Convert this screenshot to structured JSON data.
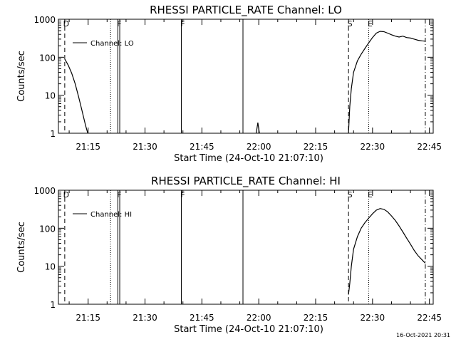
{
  "footer_timestamp": "16-Oct-2021 20:31",
  "chart_data": [
    {
      "type": "line",
      "title": "RHESSI PARTICLE_RATE Channel: LO",
      "xlabel": "Start Time (24-Oct-10 21:07:10)",
      "ylabel": "Counts/sec",
      "y_scale": "log",
      "xlim": [
        "21:07:10",
        "22:46:00"
      ],
      "ylim": [
        1,
        1000
      ],
      "x_tick_labels": [
        "21:15",
        "21:30",
        "21:45",
        "22:00",
        "22:15",
        "22:30",
        "22:45"
      ],
      "y_tick_labels": [
        "1",
        "10",
        "100",
        "1000"
      ],
      "grid": false,
      "legend_position": "top-left",
      "series": [
        {
          "name": "Channel: LO",
          "color": "#000000",
          "segments": [
            [
              [
                "21:08:50",
                90
              ],
              [
                "21:09:45",
                62
              ],
              [
                "21:10:40",
                38
              ],
              [
                "21:11:35",
                20
              ],
              [
                "21:12:30",
                9
              ],
              [
                "21:13:25",
                3.8
              ],
              [
                "21:14:20",
                1.6
              ],
              [
                "21:14:55",
                1
              ]
            ],
            [
              [
                "21:59:20",
                1
              ],
              [
                "21:59:45",
                1.9
              ],
              [
                "22:00:10",
                1
              ]
            ],
            [
              [
                "22:23:40",
                1
              ],
              [
                "22:24:00",
                5
              ],
              [
                "22:24:25",
                15
              ],
              [
                "22:25:00",
                40
              ],
              [
                "22:26:00",
                80
              ],
              [
                "22:27:00",
                120
              ],
              [
                "22:28:00",
                170
              ],
              [
                "22:29:00",
                240
              ],
              [
                "22:30:00",
                330
              ],
              [
                "22:31:00",
                430
              ],
              [
                "22:32:00",
                480
              ],
              [
                "22:33:00",
                470
              ],
              [
                "22:34:00",
                430
              ],
              [
                "22:35:00",
                390
              ],
              [
                "22:36:00",
                360
              ],
              [
                "22:37:00",
                340
              ],
              [
                "22:38:00",
                360
              ],
              [
                "22:39:00",
                330
              ],
              [
                "22:40:00",
                320
              ],
              [
                "22:41:00",
                300
              ],
              [
                "22:42:00",
                280
              ],
              [
                "22:43:00",
                270
              ],
              [
                "22:43:55",
                265
              ]
            ]
          ]
        }
      ],
      "markers": [
        {
          "label": "D",
          "time": "21:08:50",
          "style": "dashed"
        },
        {
          "label": "",
          "time": "21:20:55",
          "style": "dotted"
        },
        {
          "label": "F",
          "time": "21:22:50",
          "style": "solid"
        },
        {
          "label": "",
          "time": "21:23:20",
          "style": "solid"
        },
        {
          "label": "F",
          "time": "21:39:35",
          "style": "solid"
        },
        {
          "label": "",
          "time": "21:55:50",
          "style": "solid"
        },
        {
          "label": "S",
          "time": "22:23:40",
          "style": "dashed"
        },
        {
          "label": "E",
          "time": "22:29:00",
          "style": "dotted"
        },
        {
          "label": "",
          "time": "22:43:55",
          "style": "dashdot"
        }
      ]
    },
    {
      "type": "line",
      "title": "RHESSI PARTICLE_RATE Channel: HI",
      "xlabel": "Start Time (24-Oct-10 21:07:10)",
      "ylabel": "Counts/sec",
      "y_scale": "log",
      "xlim": [
        "21:07:10",
        "22:46:00"
      ],
      "ylim": [
        1,
        1000
      ],
      "x_tick_labels": [
        "21:15",
        "21:30",
        "21:45",
        "22:00",
        "22:15",
        "22:30",
        "22:45"
      ],
      "y_tick_labels": [
        "1",
        "10",
        "100",
        "1000"
      ],
      "grid": false,
      "legend_position": "top-left",
      "series": [
        {
          "name": "Channel: HI",
          "color": "#000000",
          "segments": [
            [
              [
                "22:23:40",
                1.8
              ],
              [
                "22:24:00",
                3.5
              ],
              [
                "22:24:25",
                10
              ],
              [
                "22:25:00",
                28
              ],
              [
                "22:26:00",
                60
              ],
              [
                "22:27:00",
                100
              ],
              [
                "22:28:00",
                140
              ],
              [
                "22:29:00",
                185
              ],
              [
                "22:30:00",
                240
              ],
              [
                "22:31:00",
                300
              ],
              [
                "22:32:00",
                330
              ],
              [
                "22:33:00",
                315
              ],
              [
                "22:34:00",
                270
              ],
              [
                "22:35:00",
                210
              ],
              [
                "22:36:00",
                160
              ],
              [
                "22:37:00",
                115
              ],
              [
                "22:38:00",
                80
              ],
              [
                "22:39:00",
                55
              ],
              [
                "22:40:00",
                38
              ],
              [
                "22:41:00",
                26
              ],
              [
                "22:42:00",
                19
              ],
              [
                "22:43:00",
                15
              ],
              [
                "22:43:55",
                12
              ]
            ]
          ]
        }
      ],
      "markers": [
        {
          "label": "D",
          "time": "21:08:50",
          "style": "dashed"
        },
        {
          "label": "",
          "time": "21:20:55",
          "style": "dotted"
        },
        {
          "label": "F",
          "time": "21:22:50",
          "style": "solid"
        },
        {
          "label": "",
          "time": "21:23:20",
          "style": "solid"
        },
        {
          "label": "F",
          "time": "21:39:35",
          "style": "solid"
        },
        {
          "label": "",
          "time": "21:55:50",
          "style": "solid"
        },
        {
          "label": "S",
          "time": "22:23:40",
          "style": "dashed"
        },
        {
          "label": "E",
          "time": "22:29:00",
          "style": "dotted"
        },
        {
          "label": "",
          "time": "22:43:55",
          "style": "dashdot"
        }
      ]
    }
  ]
}
